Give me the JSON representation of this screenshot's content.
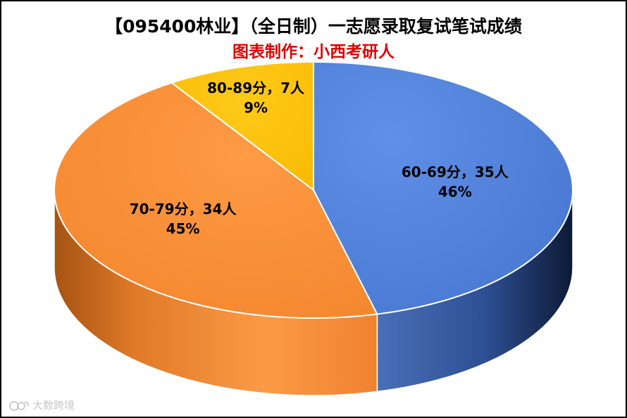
{
  "chart_data": {
    "type": "pie",
    "title": "【095400林业】（全日制）一志愿录取复试笔试成绩",
    "subtitle": "图表制作：小西考研人",
    "slices": [
      {
        "name": "60-69分",
        "value": 35,
        "unit": "人",
        "percent_label": "46%",
        "color": "#4f81d9",
        "dark": "#233f78"
      },
      {
        "name": "70-79分",
        "value": 34,
        "unit": "人",
        "percent_label": "45%",
        "color": "#f58a32",
        "dark": "#b45a18"
      },
      {
        "name": "80-89分",
        "value": 7,
        "unit": "人",
        "percent_label": "9%",
        "color": "#ffc000",
        "dark": "#b08400"
      }
    ],
    "label_separator": "，",
    "legend": "none",
    "style": "3d",
    "colors": {
      "subtitle": "#e00000",
      "title": "#000000"
    }
  },
  "watermark": {
    "text": "大数跨境",
    "logo": "watermark-logo"
  }
}
